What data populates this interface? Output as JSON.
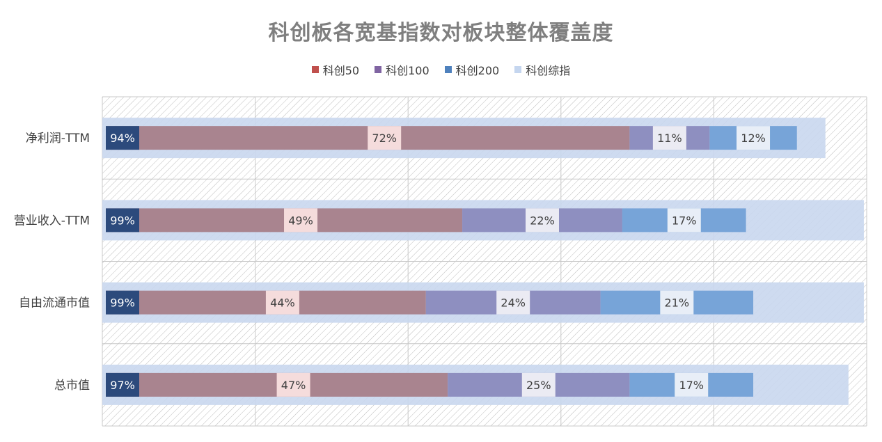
{
  "chart_data": {
    "type": "bar",
    "orientation": "horizontal",
    "stacked": false,
    "title": "科创板各宽基指数对板块整体覆盖度",
    "xlabel": "",
    "ylabel": "",
    "xlim": [
      0,
      1
    ],
    "grid": true,
    "legend_position": "top",
    "categories": [
      "净利润-TTM",
      "营业收入-TTM",
      "自由流通市值",
      "总市值"
    ],
    "series": [
      {
        "name": "科创综指",
        "color": "#c9d7ee",
        "values": [
          0.94,
          0.99,
          0.99,
          0.97
        ],
        "labels": [
          "94%",
          "99%",
          "99%",
          "97%"
        ]
      },
      {
        "name": "科创50",
        "color": "#a9848f",
        "values": [
          0.72,
          0.49,
          0.44,
          0.47
        ],
        "labels": [
          "72%",
          "49%",
          "44%",
          "47%"
        ]
      },
      {
        "name": "科创100",
        "color": "#8e8fc0",
        "values": [
          0.11,
          0.22,
          0.24,
          0.25
        ],
        "labels": [
          "11%",
          "22%",
          "24%",
          "25%"
        ]
      },
      {
        "name": "科创200",
        "color": "#77a4d8",
        "values": [
          0.12,
          0.17,
          0.21,
          0.17
        ],
        "labels": [
          "12%",
          "17%",
          "21%",
          "17%"
        ]
      }
    ],
    "legend_order": [
      "科创50",
      "科创100",
      "科创200",
      "科创综指"
    ],
    "legend_colors": [
      "#c0504d",
      "#8064a2",
      "#4f81bd",
      "#c5d6ef"
    ],
    "value_label_color": "#2c4a7c"
  }
}
